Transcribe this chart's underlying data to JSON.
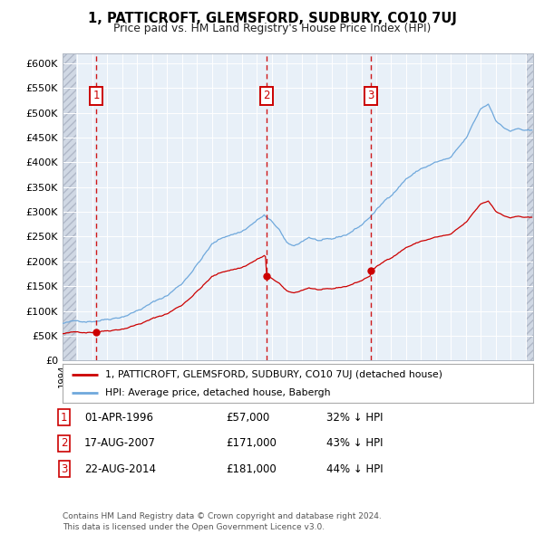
{
  "title": "1, PATTICROFT, GLEMSFORD, SUDBURY, CO10 7UJ",
  "subtitle": "Price paid vs. HM Land Registry's House Price Index (HPI)",
  "ylim": [
    0,
    620000
  ],
  "yticks": [
    0,
    50000,
    100000,
    150000,
    200000,
    250000,
    300000,
    350000,
    400000,
    450000,
    500000,
    550000,
    600000
  ],
  "ytick_labels": [
    "£0",
    "£50K",
    "£100K",
    "£150K",
    "£200K",
    "£250K",
    "£300K",
    "£350K",
    "£400K",
    "£450K",
    "£500K",
    "£550K",
    "£600K"
  ],
  "xlim_start": 1994.0,
  "xlim_end": 2025.5,
  "sale_color": "#cc0000",
  "hpi_color": "#6fa8dc",
  "sale_points": [
    {
      "year": 1996.25,
      "price": 57000,
      "label": "1"
    },
    {
      "year": 2007.63,
      "price": 171000,
      "label": "2"
    },
    {
      "year": 2014.63,
      "price": 181000,
      "label": "3"
    }
  ],
  "vline_color": "#cc0000",
  "box_color": "#cc0000",
  "legend_label_sale": "1, PATTICROFT, GLEMSFORD, SUDBURY, CO10 7UJ (detached house)",
  "legend_label_hpi": "HPI: Average price, detached house, Babergh",
  "table_rows": [
    {
      "num": "1",
      "date": "01-APR-1996",
      "price": "£57,000",
      "note": "32% ↓ HPI"
    },
    {
      "num": "2",
      "date": "17-AUG-2007",
      "price": "£171,000",
      "note": "43% ↓ HPI"
    },
    {
      "num": "3",
      "date": "22-AUG-2014",
      "price": "£181,000",
      "note": "44% ↓ HPI"
    }
  ],
  "footer": "Contains HM Land Registry data © Crown copyright and database right 2024.\nThis data is licensed under the Open Government Licence v3.0.",
  "plot_bg": "#e8f0f8",
  "hatch_bg": "#d0d8e4",
  "grid_color": "#ffffff",
  "left_hatch_end": 1994.92,
  "right_hatch_start": 2025.0
}
